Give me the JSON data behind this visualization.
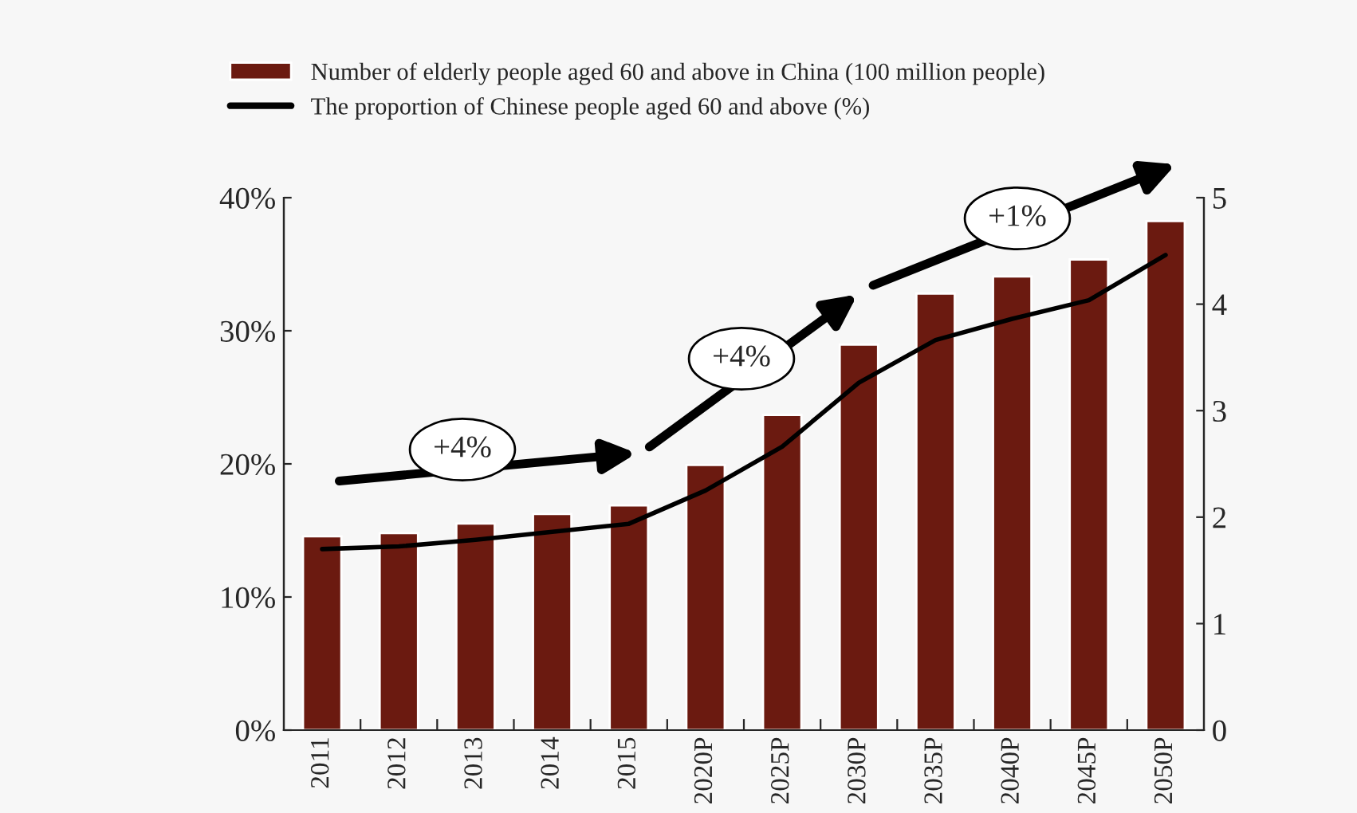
{
  "chart_data": {
    "type": "bar",
    "categories": [
      "2011",
      "2012",
      "2013",
      "2014",
      "2015",
      "2020P",
      "2025P",
      "2030P",
      "2035P",
      "2040P",
      "2045P",
      "2050P"
    ],
    "series": [
      {
        "name": "Number of elderly people aged 60 and above in China (100 million people)",
        "axis": "y2",
        "color": "#6b1a10",
        "values": [
          1.82,
          1.85,
          1.94,
          2.03,
          2.11,
          2.49,
          2.96,
          3.62,
          4.1,
          4.26,
          4.42,
          4.78
        ]
      },
      {
        "name": "The proportion of Chinese people aged 60 and above (%)",
        "type": "line",
        "axis": "y",
        "color": "#000000",
        "values": [
          13.6,
          13.8,
          14.3,
          14.9,
          15.5,
          18.0,
          21.3,
          26.1,
          29.3,
          30.9,
          32.3,
          35.7
        ]
      }
    ],
    "ylim": [
      0,
      40
    ],
    "yticks": [
      {
        "value": 0,
        "label": "0%"
      },
      {
        "value": 10,
        "label": "10%"
      },
      {
        "value": 20,
        "label": "20%"
      },
      {
        "value": 30,
        "label": "30%"
      },
      {
        "value": 40,
        "label": "40%"
      }
    ],
    "y2lim": [
      0,
      5
    ],
    "y2ticks": [
      0,
      1,
      2,
      3,
      4,
      5
    ],
    "annotations": [
      "+4%",
      "+4%",
      "+1%"
    ],
    "legend": "top",
    "grid": false,
    "marker": "none",
    "line_style": "solid"
  }
}
